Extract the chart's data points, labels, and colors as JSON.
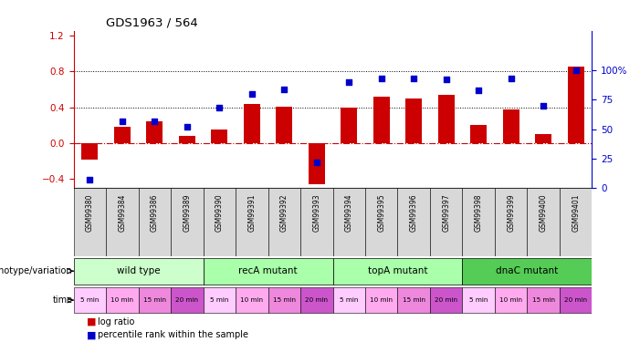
{
  "title": "GDS1963 / 564",
  "samples": [
    "GSM99380",
    "GSM99384",
    "GSM99386",
    "GSM99389",
    "GSM99390",
    "GSM99391",
    "GSM99392",
    "GSM99393",
    "GSM99394",
    "GSM99395",
    "GSM99396",
    "GSM99397",
    "GSM99398",
    "GSM99399",
    "GSM99400",
    "GSM99401"
  ],
  "log_ratio": [
    -0.18,
    0.18,
    0.24,
    0.08,
    0.15,
    0.44,
    0.41,
    -0.46,
    0.4,
    0.52,
    0.5,
    0.54,
    0.2,
    0.38,
    0.1,
    0.85
  ],
  "percentile": [
    0.07,
    0.57,
    0.57,
    0.52,
    0.68,
    0.8,
    0.84,
    0.22,
    0.9,
    0.93,
    0.93,
    0.92,
    0.83,
    0.93,
    0.7,
    1.0
  ],
  "bar_color": "#cc0000",
  "dot_color": "#0000cc",
  "ylim_left": [
    -0.5,
    1.25
  ],
  "ylim_right": [
    0,
    133.33
  ],
  "yticks_left": [
    -0.4,
    0.0,
    0.4,
    0.8,
    1.2
  ],
  "yticks_right": [
    0,
    25,
    50,
    75,
    100
  ],
  "hlines": [
    0.4,
    0.8
  ],
  "groups": [
    {
      "label": "wild type",
      "start": 0,
      "end": 4,
      "color": "#ccffcc"
    },
    {
      "label": "recA mutant",
      "start": 4,
      "end": 8,
      "color": "#aaffaa"
    },
    {
      "label": "topA mutant",
      "start": 8,
      "end": 12,
      "color": "#aaffaa"
    },
    {
      "label": "dnaC mutant",
      "start": 12,
      "end": 16,
      "color": "#55cc55"
    }
  ],
  "time_labels": [
    "5 min",
    "10 min",
    "15 min",
    "20 min",
    "5 min",
    "10 min",
    "15 min",
    "20 min",
    "5 min",
    "10 min",
    "15 min",
    "20 min",
    "5 min",
    "10 min",
    "15 min",
    "20 min"
  ],
  "time_colors_4": [
    "#ffccff",
    "#ffaaee",
    "#ee88dd",
    "#cc55cc"
  ],
  "legend_bar_color": "#cc0000",
  "legend_dot_color": "#0000cc",
  "legend_bar_label": "log ratio",
  "legend_dot_label": "percentile rank within the sample",
  "xlabel_genotype": "genotype/variation",
  "xlabel_time": "time",
  "bg_color": "#ffffff"
}
